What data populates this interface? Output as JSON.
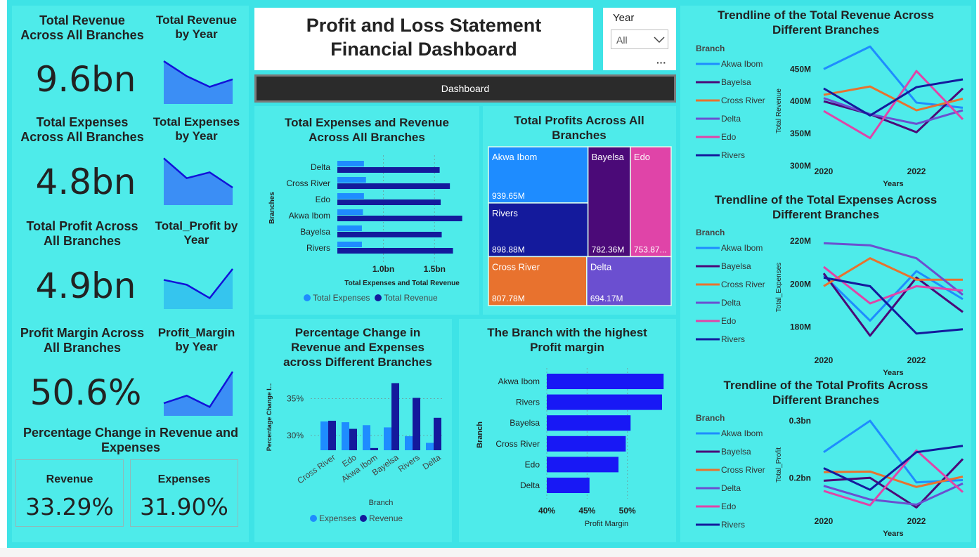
{
  "header": {
    "title_line1": "Profit and Loss Statement",
    "title_line2": "Financial Dashboard",
    "nav_button": "Dashboard"
  },
  "filter": {
    "label": "Year",
    "value": "All",
    "more": "···"
  },
  "kpis": [
    {
      "title": "Total Revenue Across All Branches",
      "value": "9.6bn",
      "spark_title": "Total Revenue by Year"
    },
    {
      "title": "Total Expenses Across All Branches",
      "value": "4.8bn",
      "spark_title": "Total Expenses by Year"
    },
    {
      "title": "Total Profit Across All Branches",
      "value": "4.9bn",
      "spark_title": "Total_Profit by Year"
    },
    {
      "title": "Profit Margin Across All Branches",
      "value": "50.6%",
      "spark_title": "Profit_Margin by Year"
    }
  ],
  "pct_change": {
    "title": "Percentage Change in Revenue and Expenses",
    "revenue_label": "Revenue",
    "revenue_value": "33.29%",
    "expenses_label": "Expenses",
    "expenses_value": "31.90%"
  },
  "colors": {
    "expenses": "#1e8cff",
    "revenue": "#141a9c",
    "bright_bar": "#1818f5",
    "akwa_ibom": "#1e8cff",
    "bayelsa": "#4b0a78",
    "cross_river": "#e8722e",
    "delta": "#6b4fd0",
    "edo": "#e044a8",
    "rivers": "#141a9c"
  },
  "chart_data": [
    {
      "id": "exp_rev_branches",
      "type": "bar",
      "orientation": "horizontal",
      "title": "Total Expenses and Revenue Across All Branches",
      "xlabel": "Total Expenses and Total Revenue",
      "ylabel": "Branches",
      "categories": [
        "Delta",
        "Cross River",
        "Edo",
        "Akwa Ibom",
        "Bayelsa",
        "Rivers"
      ],
      "series": [
        {
          "name": "Total Expenses",
          "values": [
            0.81,
            0.83,
            0.81,
            0.8,
            0.79,
            0.79
          ]
        },
        {
          "name": "Total Revenue",
          "values": [
            1.55,
            1.65,
            1.56,
            1.77,
            1.57,
            1.68
          ]
        }
      ],
      "xticks": [
        "1.0bn",
        "1.5bn"
      ],
      "xlim": [
        0.55,
        1.8
      ]
    },
    {
      "id": "profit_treemap",
      "type": "treemap",
      "title": "Total Profits Across All Branches",
      "items": [
        {
          "name": "Akwa Ibom",
          "label": "939.65M",
          "value": 939.65
        },
        {
          "name": "Rivers",
          "label": "898.88M",
          "value": 898.88
        },
        {
          "name": "Bayelsa",
          "label": "782.36M",
          "value": 782.36
        },
        {
          "name": "Edo",
          "label": "753.87...",
          "value": 753.87
        },
        {
          "name": "Cross River",
          "label": "807.78M",
          "value": 807.78
        },
        {
          "name": "Delta",
          "label": "694.17M",
          "value": 694.17
        }
      ]
    },
    {
      "id": "pct_change_branches",
      "type": "bar",
      "title": "Percentage Change in Revenue and Expenses across Different Branches",
      "xlabel": "Branch",
      "ylabel": "Percentage Change I...",
      "categories": [
        "Cross River",
        "Edo",
        "Akwa Ibom",
        "Bayelsa",
        "Rivers",
        "Delta"
      ],
      "series": [
        {
          "name": "Expenses",
          "values": [
            31.9,
            31.8,
            31.4,
            31.1,
            29.9,
            29.0
          ]
        },
        {
          "name": "Revenue",
          "values": [
            32.0,
            30.9,
            28.3,
            37.1,
            35.1,
            32.4
          ]
        }
      ],
      "yticks": [
        "35%",
        "30%"
      ],
      "ylim": [
        28,
        38
      ]
    },
    {
      "id": "profit_margin_branch",
      "type": "bar",
      "orientation": "horizontal",
      "title": "The Branch with the highest Profit margin",
      "xlabel": "Profit Margin",
      "ylabel": "Branch",
      "categories": [
        "Akwa Ibom",
        "Rivers",
        "Bayelsa",
        "Cross River",
        "Edo",
        "Delta"
      ],
      "values": [
        54.5,
        54.3,
        50.4,
        49.8,
        48.9,
        45.3
      ],
      "xticks": [
        "40%",
        "45%",
        "50%"
      ],
      "xlim": [
        40,
        55
      ]
    },
    {
      "id": "trend_revenue",
      "type": "line",
      "title": "Trendline of the Total Revenue Across Different Branches",
      "xlabel": "Years",
      "ylabel": "Total Revenue",
      "legend_title": "Branch",
      "x": [
        2020,
        2021,
        2022,
        2023
      ],
      "xticks": [
        "2020",
        "2022"
      ],
      "yticks": [
        "450M",
        "400M",
        "350M",
        "300M"
      ],
      "ylim": [
        300,
        470
      ],
      "series": [
        {
          "name": "Akwa Ibom",
          "values": [
            450,
            485,
            398,
            390
          ]
        },
        {
          "name": "Bayelsa",
          "values": [
            400,
            380,
            352,
            420
          ]
        },
        {
          "name": "Cross River",
          "values": [
            410,
            423,
            386,
            404
          ]
        },
        {
          "name": "Delta",
          "values": [
            405,
            380,
            365,
            386
          ]
        },
        {
          "name": "Edo",
          "values": [
            385,
            343,
            447,
            372
          ]
        },
        {
          "name": "Rivers",
          "values": [
            420,
            378,
            422,
            434
          ]
        }
      ]
    },
    {
      "id": "trend_expenses",
      "type": "line",
      "title": "Trendline of the Total Expenses Across Different Branches",
      "xlabel": "Years",
      "ylabel": "Total_Expenses",
      "legend_title": "Branch",
      "x": [
        2020,
        2021,
        2022,
        2023
      ],
      "xticks": [
        "2020",
        "2022"
      ],
      "yticks": [
        "220M",
        "200M",
        "180M"
      ],
      "ylim": [
        175,
        222
      ],
      "series": [
        {
          "name": "Akwa Ibom",
          "values": [
            204,
            183,
            206,
            193
          ]
        },
        {
          "name": "Bayelsa",
          "values": [
            205,
            176,
            203,
            187
          ]
        },
        {
          "name": "Cross River",
          "values": [
            199,
            212,
            202,
            202
          ]
        },
        {
          "name": "Delta",
          "values": [
            219,
            218,
            212,
            195
          ]
        },
        {
          "name": "Edo",
          "values": [
            208,
            191,
            199,
            197
          ]
        },
        {
          "name": "Rivers",
          "values": [
            203,
            199,
            177,
            179
          ]
        }
      ]
    },
    {
      "id": "trend_profit",
      "type": "line",
      "title": "Trendline of the Total Profits Across Different Branches",
      "xlabel": "Years",
      "ylabel": "Total_Profit",
      "legend_title": "Branch",
      "x": [
        2020,
        2021,
        2022,
        2023
      ],
      "xticks": [
        "2020",
        "2022"
      ],
      "yticks": [
        "0.3bn",
        "0.2bn"
      ],
      "ylim": [
        0.14,
        0.305
      ],
      "series": [
        {
          "name": "Akwa Ibom",
          "values": [
            0.245,
            0.3,
            0.192,
            0.196
          ]
        },
        {
          "name": "Bayelsa",
          "values": [
            0.195,
            0.2,
            0.148,
            0.233
          ]
        },
        {
          "name": "Cross River",
          "values": [
            0.21,
            0.211,
            0.184,
            0.202
          ]
        },
        {
          "name": "Delta",
          "values": [
            0.186,
            0.162,
            0.153,
            0.19
          ]
        },
        {
          "name": "Edo",
          "values": [
            0.177,
            0.152,
            0.248,
            0.175
          ]
        },
        {
          "name": "Rivers",
          "values": [
            0.217,
            0.179,
            0.245,
            0.256
          ]
        }
      ]
    }
  ],
  "sparklines": [
    {
      "values": [
        4,
        2.6,
        1.6,
        2.3
      ]
    },
    {
      "values": [
        4,
        2.3,
        2.8,
        1.5
      ]
    },
    {
      "values": [
        2.4,
        2.0,
        0.9,
        3.3
      ]
    },
    {
      "values": [
        1.0,
        1.6,
        0.7,
        3.5
      ]
    }
  ]
}
